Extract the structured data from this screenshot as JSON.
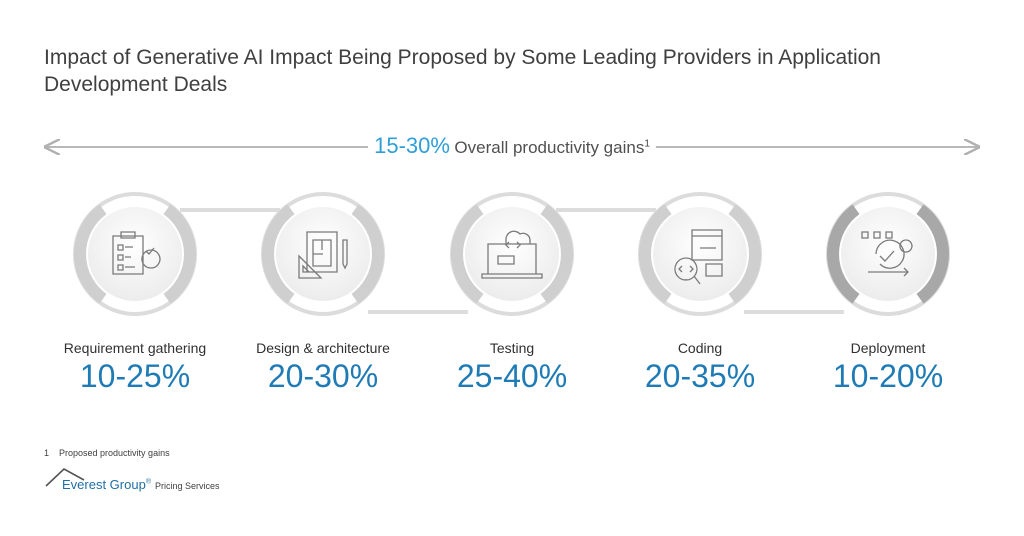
{
  "title": "Impact of Generative AI Impact Being Proposed by Some Leading Providers in Application Development Deals",
  "overall": {
    "value": "15-30%",
    "label": "Overall productivity gains",
    "footnote_ref": "1"
  },
  "stages": [
    {
      "name": "Requirement gathering",
      "value": "10-25%",
      "icon": "clipboard-checklist-gear-icon"
    },
    {
      "name": "Design & architecture",
      "value": "20-30%",
      "icon": "blueprint-ruler-pencil-icon"
    },
    {
      "name": "Testing",
      "value": "25-40%",
      "icon": "laptop-cloud-code-icon"
    },
    {
      "name": "Coding",
      "value": "20-35%",
      "icon": "monitor-code-magnifier-icon"
    },
    {
      "name": "Deployment",
      "value": "10-20%",
      "icon": "cycle-gear-check-icon"
    }
  ],
  "footnote": {
    "number": "1",
    "text": "Proposed productivity gains"
  },
  "brand": {
    "name": "Everest Group",
    "registered": "®",
    "suffix": "Pricing Services"
  },
  "colors": {
    "accent": "#2f9fd8",
    "value": "#1f7bb5",
    "ring": "#dcdcdc",
    "band": "#cfcfcf",
    "band_last": "#a8a8a8"
  }
}
